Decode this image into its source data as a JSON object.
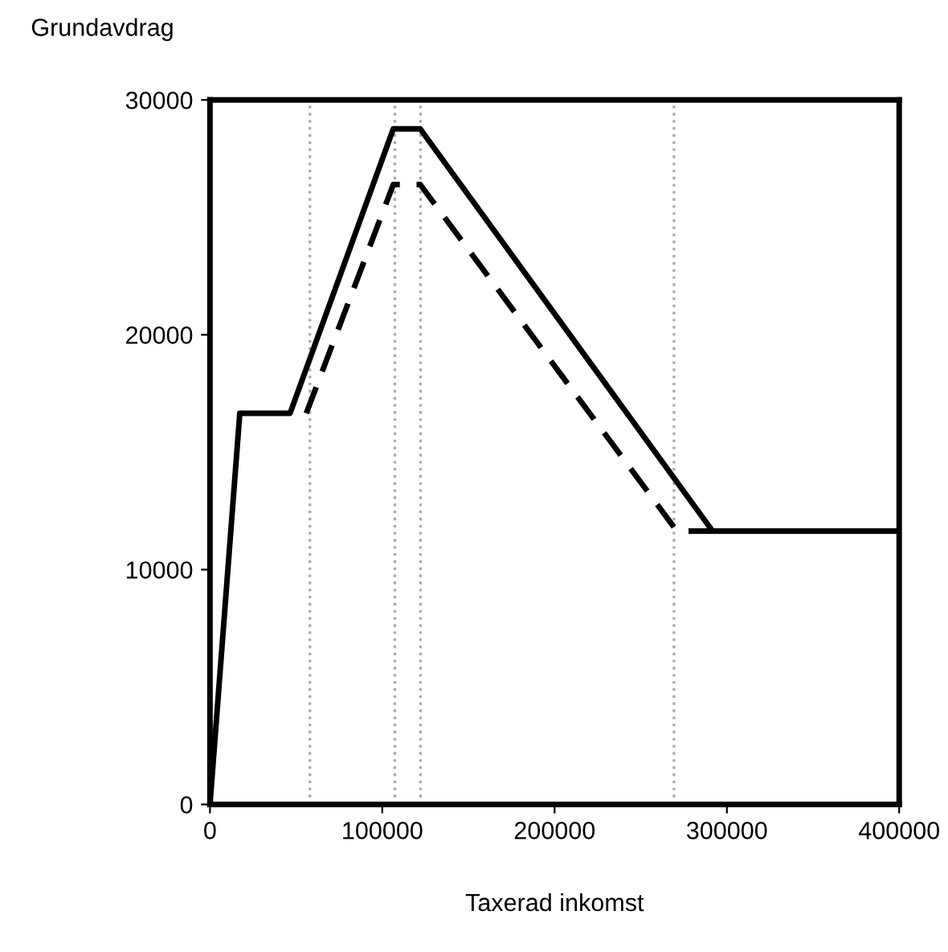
{
  "chart_data": {
    "type": "line",
    "xlabel": "Taxerad inkomst",
    "ylabel": "Grundavdrag",
    "xlim": [
      0,
      400000
    ],
    "ylim": [
      0,
      30000
    ],
    "xticks": [
      0,
      100000,
      200000,
      300000,
      400000
    ],
    "yticks": [
      0,
      10000,
      20000,
      30000
    ],
    "grid": false,
    "legend": false,
    "marker": "none",
    "series": [
      {
        "color": "#000000",
        "line_style": "solid",
        "x": [
          0,
          17300,
          46500,
          106400,
          122000,
          291700,
          400000
        ],
        "values": [
          0,
          16660,
          16660,
          28770,
          28770,
          11640,
          11640
        ]
      },
      {
        "color": "#000000",
        "line_style": "dashed",
        "x": [
          55900,
          106400,
          122000,
          271000,
          400000
        ],
        "values": [
          16660,
          26400,
          26400,
          11640,
          11640
        ]
      }
    ],
    "ref_lines": [
      {
        "axis": "x",
        "value": 58000,
        "color": "#aaaaaa",
        "line_style": "dotted"
      },
      {
        "axis": "x",
        "value": 107300,
        "color": "#aaaaaa",
        "line_style": "dotted"
      },
      {
        "axis": "x",
        "value": 122200,
        "color": "#aaaaaa",
        "line_style": "dotted"
      },
      {
        "axis": "x",
        "value": 269300,
        "color": "#aaaaaa",
        "line_style": "dotted"
      }
    ]
  }
}
